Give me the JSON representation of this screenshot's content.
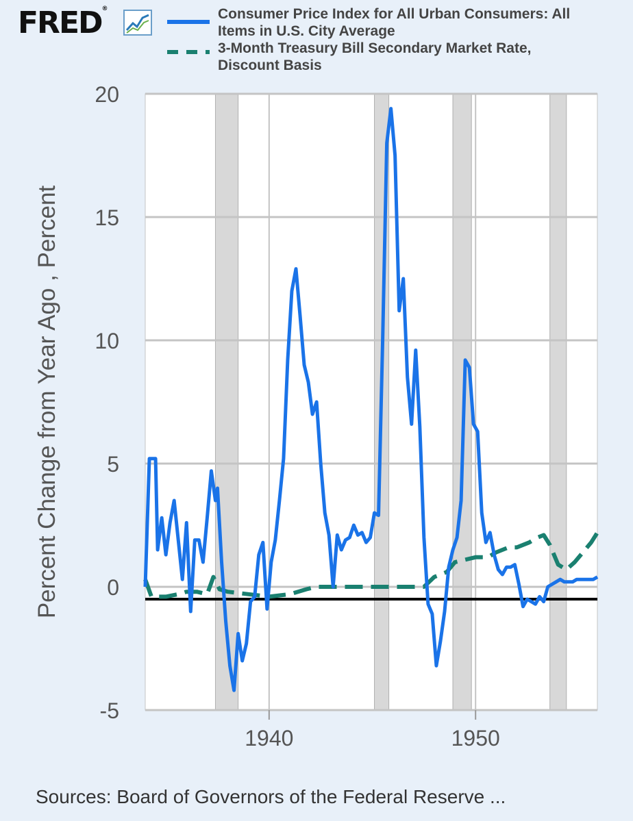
{
  "header": {
    "logo_text": "FRED",
    "logo_mark": "®",
    "logo_icon": "line-chart-icon"
  },
  "source_text": "Sources: Board of Governors of the Federal Reserve ...",
  "chart_data": {
    "type": "line",
    "title": "",
    "xlabel": "",
    "ylabel": "Percent Change from Year Ago , Percent",
    "xlim": [
      1934.0,
      1955.9
    ],
    "ylim": [
      -5,
      20
    ],
    "x_ticks": [
      1940,
      1950
    ],
    "y_ticks": [
      20,
      15,
      10,
      5,
      0,
      -5
    ],
    "y_tick_labels": [
      "20",
      "15",
      "10",
      "5",
      "0",
      "-5"
    ],
    "grid": true,
    "legend_position": "top",
    "zero_line": -0.5,
    "recessions": [
      [
        1937.4,
        1938.5
      ],
      [
        1945.1,
        1945.8
      ],
      [
        1948.9,
        1949.8
      ],
      [
        1953.6,
        1954.4
      ]
    ],
    "colors": {
      "cpi": "#1a73e8",
      "tbill": "#1a8070",
      "recession": "#d8d8d8",
      "zero_line": "#000000"
    },
    "series": [
      {
        "name": "Consumer Price Index for All Urban Consumers: All Items in U.S. City Average",
        "style": "solid",
        "x": [
          1934.0,
          1934.2,
          1934.5,
          1934.6,
          1934.8,
          1935.0,
          1935.2,
          1935.4,
          1935.6,
          1935.8,
          1936.0,
          1936.2,
          1936.4,
          1936.6,
          1936.8,
          1937.0,
          1937.2,
          1937.4,
          1937.5,
          1937.7,
          1937.9,
          1938.1,
          1938.3,
          1938.5,
          1938.7,
          1938.9,
          1939.1,
          1939.3,
          1939.5,
          1939.7,
          1939.9,
          1940.1,
          1940.3,
          1940.5,
          1940.7,
          1940.9,
          1941.1,
          1941.3,
          1941.5,
          1941.7,
          1941.9,
          1942.1,
          1942.3,
          1942.5,
          1942.7,
          1942.9,
          1943.1,
          1943.3,
          1943.5,
          1943.7,
          1943.9,
          1944.1,
          1944.3,
          1944.5,
          1944.7,
          1944.9,
          1945.1,
          1945.3,
          1945.5,
          1945.7,
          1945.9,
          1946.1,
          1946.3,
          1946.5,
          1946.7,
          1946.9,
          1947.1,
          1947.3,
          1947.5,
          1947.7,
          1947.9,
          1948.1,
          1948.3,
          1948.5,
          1948.7,
          1948.9,
          1949.1,
          1949.3,
          1949.5,
          1949.7,
          1949.9,
          1950.1,
          1950.3,
          1950.5,
          1950.7,
          1950.9,
          1951.1,
          1951.3,
          1951.5,
          1951.7,
          1951.9,
          1952.1,
          1952.3,
          1952.5,
          1952.7,
          1952.9,
          1953.1,
          1953.3,
          1953.5,
          1953.7,
          1953.9,
          1954.1,
          1954.3,
          1954.5,
          1954.7,
          1954.9,
          1955.1,
          1955.3,
          1955.5,
          1955.7,
          1955.9
        ],
        "y": [
          0.0,
          5.2,
          5.2,
          1.5,
          2.8,
          1.3,
          2.6,
          3.5,
          1.9,
          0.3,
          2.6,
          -1.0,
          1.9,
          1.9,
          1.0,
          2.8,
          4.7,
          3.5,
          4.0,
          1.0,
          -1.4,
          -3.2,
          -4.2,
          -1.9,
          -3.0,
          -2.3,
          -0.6,
          -0.4,
          1.3,
          1.8,
          -0.9,
          1.0,
          1.9,
          3.5,
          5.2,
          9.2,
          12.0,
          12.9,
          11.0,
          9.0,
          8.3,
          7.0,
          7.5,
          5.0,
          3.0,
          2.1,
          0.0,
          2.1,
          1.5,
          1.9,
          2.0,
          2.5,
          2.1,
          2.2,
          1.8,
          2.0,
          3.0,
          2.9,
          10.0,
          18.0,
          19.4,
          17.5,
          11.2,
          12.5,
          8.5,
          6.6,
          9.6,
          6.5,
          2.0,
          -0.7,
          -1.1,
          -3.2,
          -2.2,
          -1.0,
          0.8,
          1.5,
          2.0,
          3.5,
          9.2,
          8.9,
          6.6,
          6.3,
          3.0,
          1.8,
          2.2,
          1.3,
          0.7,
          0.5,
          0.8,
          0.8,
          0.9,
          0.1,
          -0.8,
          -0.5,
          -0.6,
          -0.7,
          -0.4,
          -0.6,
          0.0,
          0.1,
          0.2,
          0.3,
          0.2,
          0.2,
          0.2,
          0.3,
          0.3,
          0.3,
          0.3,
          0.3,
          0.4
        ]
      },
      {
        "name": "3-Month Treasury Bill Secondary Market Rate, Discount Basis",
        "style": "dashed",
        "x": [
          1934.0,
          1934.3,
          1935.0,
          1935.6,
          1936.0,
          1936.5,
          1937.0,
          1937.3,
          1937.6,
          1938.0,
          1939.0,
          1940.0,
          1941.0,
          1941.8,
          1942.3,
          1943.0,
          1944.0,
          1945.0,
          1946.0,
          1947.0,
          1947.5,
          1948.0,
          1948.6,
          1949.0,
          1949.5,
          1950.0,
          1950.6,
          1951.0,
          1951.6,
          1952.0,
          1952.6,
          1953.0,
          1953.3,
          1953.6,
          1954.0,
          1954.4,
          1954.8,
          1955.2,
          1955.6,
          1955.9
        ],
        "y": [
          0.3,
          -0.4,
          -0.4,
          -0.3,
          -0.2,
          -0.2,
          -0.3,
          0.4,
          -0.1,
          -0.2,
          -0.3,
          -0.4,
          -0.3,
          -0.1,
          0.0,
          0.0,
          0.0,
          0.0,
          0.0,
          0.0,
          0.0,
          0.4,
          0.6,
          1.0,
          1.1,
          1.2,
          1.2,
          1.4,
          1.6,
          1.6,
          1.8,
          2.0,
          2.1,
          1.7,
          0.9,
          0.7,
          1.0,
          1.4,
          1.8,
          2.2
        ]
      }
    ]
  }
}
